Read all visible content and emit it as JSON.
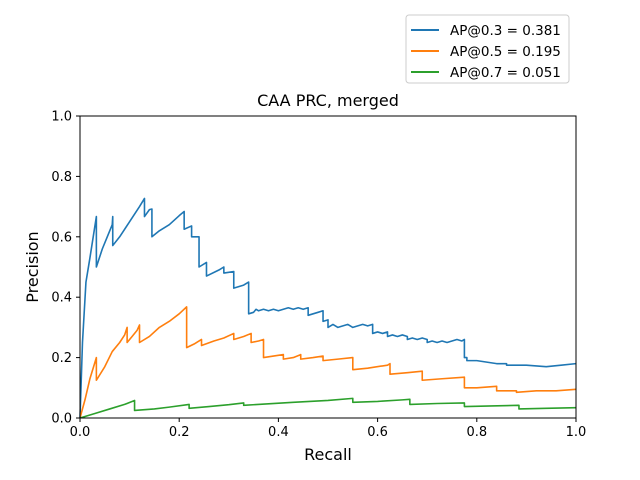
{
  "chart_data": {
    "type": "line",
    "title": "CAA PRC, merged",
    "xlabel": "Recall",
    "ylabel": "Precision",
    "xlim": [
      0.0,
      1.0
    ],
    "ylim": [
      0.0,
      1.0
    ],
    "xticks": [
      "0.0",
      "0.2",
      "0.4",
      "0.6",
      "0.8",
      "1.0"
    ],
    "yticks": [
      "0.0",
      "0.2",
      "0.4",
      "0.6",
      "0.8",
      "1.0"
    ],
    "grid": false,
    "legend_position": "upper-right, above plot",
    "series": [
      {
        "name": "AP@0.3 = 0.381",
        "color": "#1f77b4",
        "points": [
          [
            0.0,
            0.0
          ],
          [
            0.005,
            0.25
          ],
          [
            0.012,
            0.45
          ],
          [
            0.02,
            0.53
          ],
          [
            0.033,
            0.667
          ],
          [
            0.033,
            0.5
          ],
          [
            0.045,
            0.56
          ],
          [
            0.055,
            0.6
          ],
          [
            0.065,
            0.64
          ],
          [
            0.066,
            0.667
          ],
          [
            0.066,
            0.571
          ],
          [
            0.08,
            0.6
          ],
          [
            0.1,
            0.65
          ],
          [
            0.12,
            0.7
          ],
          [
            0.13,
            0.727
          ],
          [
            0.13,
            0.667
          ],
          [
            0.14,
            0.69
          ],
          [
            0.145,
            0.692
          ],
          [
            0.145,
            0.6
          ],
          [
            0.16,
            0.62
          ],
          [
            0.18,
            0.64
          ],
          [
            0.2,
            0.67
          ],
          [
            0.21,
            0.684
          ],
          [
            0.21,
            0.625
          ],
          [
            0.225,
            0.636
          ],
          [
            0.225,
            0.6
          ],
          [
            0.24,
            0.6
          ],
          [
            0.24,
            0.5
          ],
          [
            0.255,
            0.515
          ],
          [
            0.255,
            0.47
          ],
          [
            0.28,
            0.49
          ],
          [
            0.29,
            0.5
          ],
          [
            0.29,
            0.48
          ],
          [
            0.31,
            0.485
          ],
          [
            0.31,
            0.43
          ],
          [
            0.33,
            0.44
          ],
          [
            0.34,
            0.45
          ],
          [
            0.34,
            0.345
          ],
          [
            0.35,
            0.35
          ],
          [
            0.355,
            0.36
          ],
          [
            0.36,
            0.355
          ],
          [
            0.37,
            0.36
          ],
          [
            0.38,
            0.355
          ],
          [
            0.39,
            0.36
          ],
          [
            0.4,
            0.355
          ],
          [
            0.41,
            0.36
          ],
          [
            0.42,
            0.365
          ],
          [
            0.43,
            0.36
          ],
          [
            0.44,
            0.365
          ],
          [
            0.45,
            0.36
          ],
          [
            0.46,
            0.365
          ],
          [
            0.46,
            0.34
          ],
          [
            0.48,
            0.35
          ],
          [
            0.49,
            0.355
          ],
          [
            0.49,
            0.32
          ],
          [
            0.5,
            0.325
          ],
          [
            0.5,
            0.3
          ],
          [
            0.51,
            0.31
          ],
          [
            0.52,
            0.3
          ],
          [
            0.53,
            0.305
          ],
          [
            0.54,
            0.31
          ],
          [
            0.55,
            0.3
          ],
          [
            0.56,
            0.305
          ],
          [
            0.57,
            0.31
          ],
          [
            0.58,
            0.305
          ],
          [
            0.59,
            0.31
          ],
          [
            0.59,
            0.28
          ],
          [
            0.6,
            0.285
          ],
          [
            0.61,
            0.28
          ],
          [
            0.62,
            0.285
          ],
          [
            0.62,
            0.27
          ],
          [
            0.63,
            0.275
          ],
          [
            0.64,
            0.27
          ],
          [
            0.65,
            0.275
          ],
          [
            0.66,
            0.27
          ],
          [
            0.66,
            0.26
          ],
          [
            0.67,
            0.265
          ],
          [
            0.68,
            0.26
          ],
          [
            0.69,
            0.265
          ],
          [
            0.7,
            0.26
          ],
          [
            0.7,
            0.25
          ],
          [
            0.71,
            0.255
          ],
          [
            0.72,
            0.25
          ],
          [
            0.73,
            0.255
          ],
          [
            0.74,
            0.25
          ],
          [
            0.75,
            0.255
          ],
          [
            0.76,
            0.26
          ],
          [
            0.77,
            0.255
          ],
          [
            0.775,
            0.26
          ],
          [
            0.775,
            0.2
          ],
          [
            0.78,
            0.2
          ],
          [
            0.78,
            0.19
          ],
          [
            0.8,
            0.19
          ],
          [
            0.82,
            0.185
          ],
          [
            0.84,
            0.18
          ],
          [
            0.86,
            0.18
          ],
          [
            0.86,
            0.175
          ],
          [
            0.9,
            0.175
          ],
          [
            0.94,
            0.17
          ],
          [
            0.97,
            0.175
          ],
          [
            1.0,
            0.18
          ]
        ]
      },
      {
        "name": "AP@0.5 = 0.195",
        "color": "#ff7f0e",
        "points": [
          [
            0.0,
            0.0
          ],
          [
            0.01,
            0.06
          ],
          [
            0.02,
            0.13
          ],
          [
            0.033,
            0.2
          ],
          [
            0.033,
            0.125
          ],
          [
            0.05,
            0.17
          ],
          [
            0.065,
            0.22
          ],
          [
            0.08,
            0.25
          ],
          [
            0.09,
            0.275
          ],
          [
            0.095,
            0.3
          ],
          [
            0.095,
            0.25
          ],
          [
            0.105,
            0.27
          ],
          [
            0.115,
            0.29
          ],
          [
            0.12,
            0.308
          ],
          [
            0.12,
            0.25
          ],
          [
            0.14,
            0.27
          ],
          [
            0.16,
            0.3
          ],
          [
            0.18,
            0.32
          ],
          [
            0.2,
            0.345
          ],
          [
            0.215,
            0.368
          ],
          [
            0.215,
            0.233
          ],
          [
            0.23,
            0.245
          ],
          [
            0.245,
            0.26
          ],
          [
            0.245,
            0.24
          ],
          [
            0.27,
            0.255
          ],
          [
            0.29,
            0.265
          ],
          [
            0.31,
            0.28
          ],
          [
            0.31,
            0.26
          ],
          [
            0.33,
            0.27
          ],
          [
            0.345,
            0.28
          ],
          [
            0.345,
            0.25
          ],
          [
            0.36,
            0.255
          ],
          [
            0.37,
            0.26
          ],
          [
            0.37,
            0.2
          ],
          [
            0.39,
            0.205
          ],
          [
            0.41,
            0.21
          ],
          [
            0.41,
            0.195
          ],
          [
            0.43,
            0.2
          ],
          [
            0.445,
            0.21
          ],
          [
            0.445,
            0.195
          ],
          [
            0.47,
            0.2
          ],
          [
            0.49,
            0.205
          ],
          [
            0.49,
            0.19
          ],
          [
            0.52,
            0.195
          ],
          [
            0.55,
            0.2
          ],
          [
            0.55,
            0.16
          ],
          [
            0.58,
            0.165
          ],
          [
            0.62,
            0.175
          ],
          [
            0.625,
            0.18
          ],
          [
            0.625,
            0.145
          ],
          [
            0.66,
            0.15
          ],
          [
            0.69,
            0.155
          ],
          [
            0.69,
            0.125
          ],
          [
            0.73,
            0.13
          ],
          [
            0.775,
            0.135
          ],
          [
            0.775,
            0.1
          ],
          [
            0.8,
            0.1
          ],
          [
            0.84,
            0.105
          ],
          [
            0.84,
            0.09
          ],
          [
            0.88,
            0.09
          ],
          [
            0.88,
            0.085
          ],
          [
            0.92,
            0.09
          ],
          [
            0.96,
            0.09
          ],
          [
            1.0,
            0.095
          ]
        ]
      },
      {
        "name": "AP@0.7 = 0.051",
        "color": "#2ca02c",
        "points": [
          [
            0.0,
            0.0
          ],
          [
            0.03,
            0.015
          ],
          [
            0.06,
            0.03
          ],
          [
            0.09,
            0.045
          ],
          [
            0.11,
            0.058
          ],
          [
            0.11,
            0.025
          ],
          [
            0.15,
            0.03
          ],
          [
            0.18,
            0.036
          ],
          [
            0.22,
            0.045
          ],
          [
            0.22,
            0.032
          ],
          [
            0.26,
            0.038
          ],
          [
            0.3,
            0.044
          ],
          [
            0.33,
            0.05
          ],
          [
            0.33,
            0.042
          ],
          [
            0.38,
            0.047
          ],
          [
            0.43,
            0.052
          ],
          [
            0.5,
            0.058
          ],
          [
            0.55,
            0.065
          ],
          [
            0.55,
            0.052
          ],
          [
            0.6,
            0.055
          ],
          [
            0.65,
            0.06
          ],
          [
            0.665,
            0.062
          ],
          [
            0.665,
            0.045
          ],
          [
            0.72,
            0.048
          ],
          [
            0.775,
            0.05
          ],
          [
            0.775,
            0.038
          ],
          [
            0.83,
            0.04
          ],
          [
            0.885,
            0.042
          ],
          [
            0.885,
            0.03
          ],
          [
            0.94,
            0.032
          ],
          [
            1.0,
            0.034
          ]
        ]
      }
    ]
  }
}
